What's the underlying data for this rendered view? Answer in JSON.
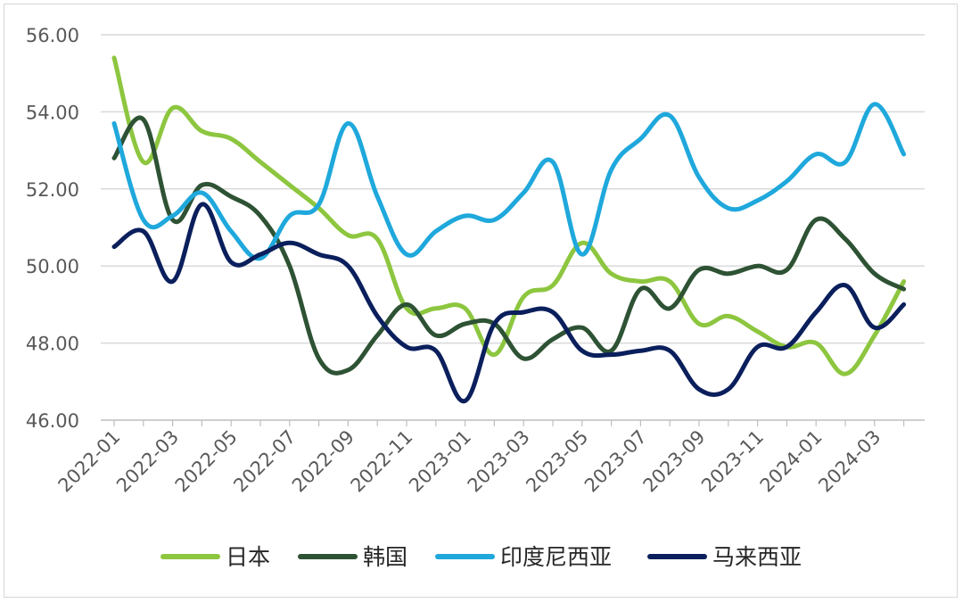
{
  "chart_data": {
    "type": "line",
    "title": "",
    "xlabel": "",
    "ylabel": "",
    "ylim": [
      46,
      56
    ],
    "yticks": [
      "46.00",
      "48.00",
      "50.00",
      "52.00",
      "54.00",
      "56.00"
    ],
    "x": [
      "2022-01",
      "2022-02",
      "2022-03",
      "2022-04",
      "2022-05",
      "2022-06",
      "2022-07",
      "2022-08",
      "2022-09",
      "2022-10",
      "2022-11",
      "2022-12",
      "2023-01",
      "2023-02",
      "2023-03",
      "2023-04",
      "2023-05",
      "2023-06",
      "2023-07",
      "2023-08",
      "2023-09",
      "2023-10",
      "2023-11",
      "2023-12",
      "2024-01",
      "2024-02",
      "2024-03",
      "2024-04"
    ],
    "xticks": [
      "2022-01",
      "2022-03",
      "2022-05",
      "2022-07",
      "2022-09",
      "2022-11",
      "2023-01",
      "2023-03",
      "2023-05",
      "2023-07",
      "2023-09",
      "2023-11",
      "2024-01",
      "2024-03"
    ],
    "grid": "horizontal",
    "legend_position": "bottom",
    "series": [
      {
        "name": "日本",
        "color": "#8dc63f",
        "values": [
          55.4,
          52.7,
          54.1,
          53.5,
          53.3,
          52.7,
          52.1,
          51.5,
          50.8,
          50.7,
          48.9,
          48.9,
          48.9,
          47.7,
          49.2,
          49.5,
          50.6,
          49.8,
          49.6,
          49.6,
          48.5,
          48.7,
          48.3,
          47.9,
          48.0,
          47.2,
          48.2,
          49.6
        ]
      },
      {
        "name": "韩国",
        "color": "#2e5234",
        "values": [
          52.8,
          53.8,
          51.2,
          52.1,
          51.8,
          51.3,
          50.0,
          47.6,
          47.3,
          48.2,
          49.0,
          48.2,
          48.5,
          48.5,
          47.6,
          48.1,
          48.4,
          47.8,
          49.4,
          48.9,
          49.9,
          49.8,
          50.0,
          49.9,
          51.2,
          50.7,
          49.8,
          49.4
        ]
      },
      {
        "name": "印度尼西亚",
        "color": "#1fa8dc",
        "values": [
          53.7,
          51.2,
          51.3,
          51.9,
          50.9,
          50.2,
          51.3,
          51.6,
          53.7,
          51.8,
          50.3,
          50.9,
          51.3,
          51.2,
          51.9,
          52.7,
          50.3,
          52.5,
          53.3,
          53.9,
          52.3,
          51.5,
          51.7,
          52.2,
          52.9,
          52.7,
          54.2,
          52.9
        ]
      },
      {
        "name": "马来西亚",
        "color": "#0a1f5c",
        "values": [
          50.5,
          50.9,
          49.6,
          51.6,
          50.1,
          50.3,
          50.6,
          50.3,
          50.0,
          48.7,
          47.9,
          47.8,
          46.5,
          48.5,
          48.8,
          48.8,
          47.8,
          47.7,
          47.8,
          47.8,
          46.8,
          46.8,
          47.9,
          47.9,
          48.8,
          49.5,
          48.4,
          49.0
        ]
      }
    ]
  }
}
